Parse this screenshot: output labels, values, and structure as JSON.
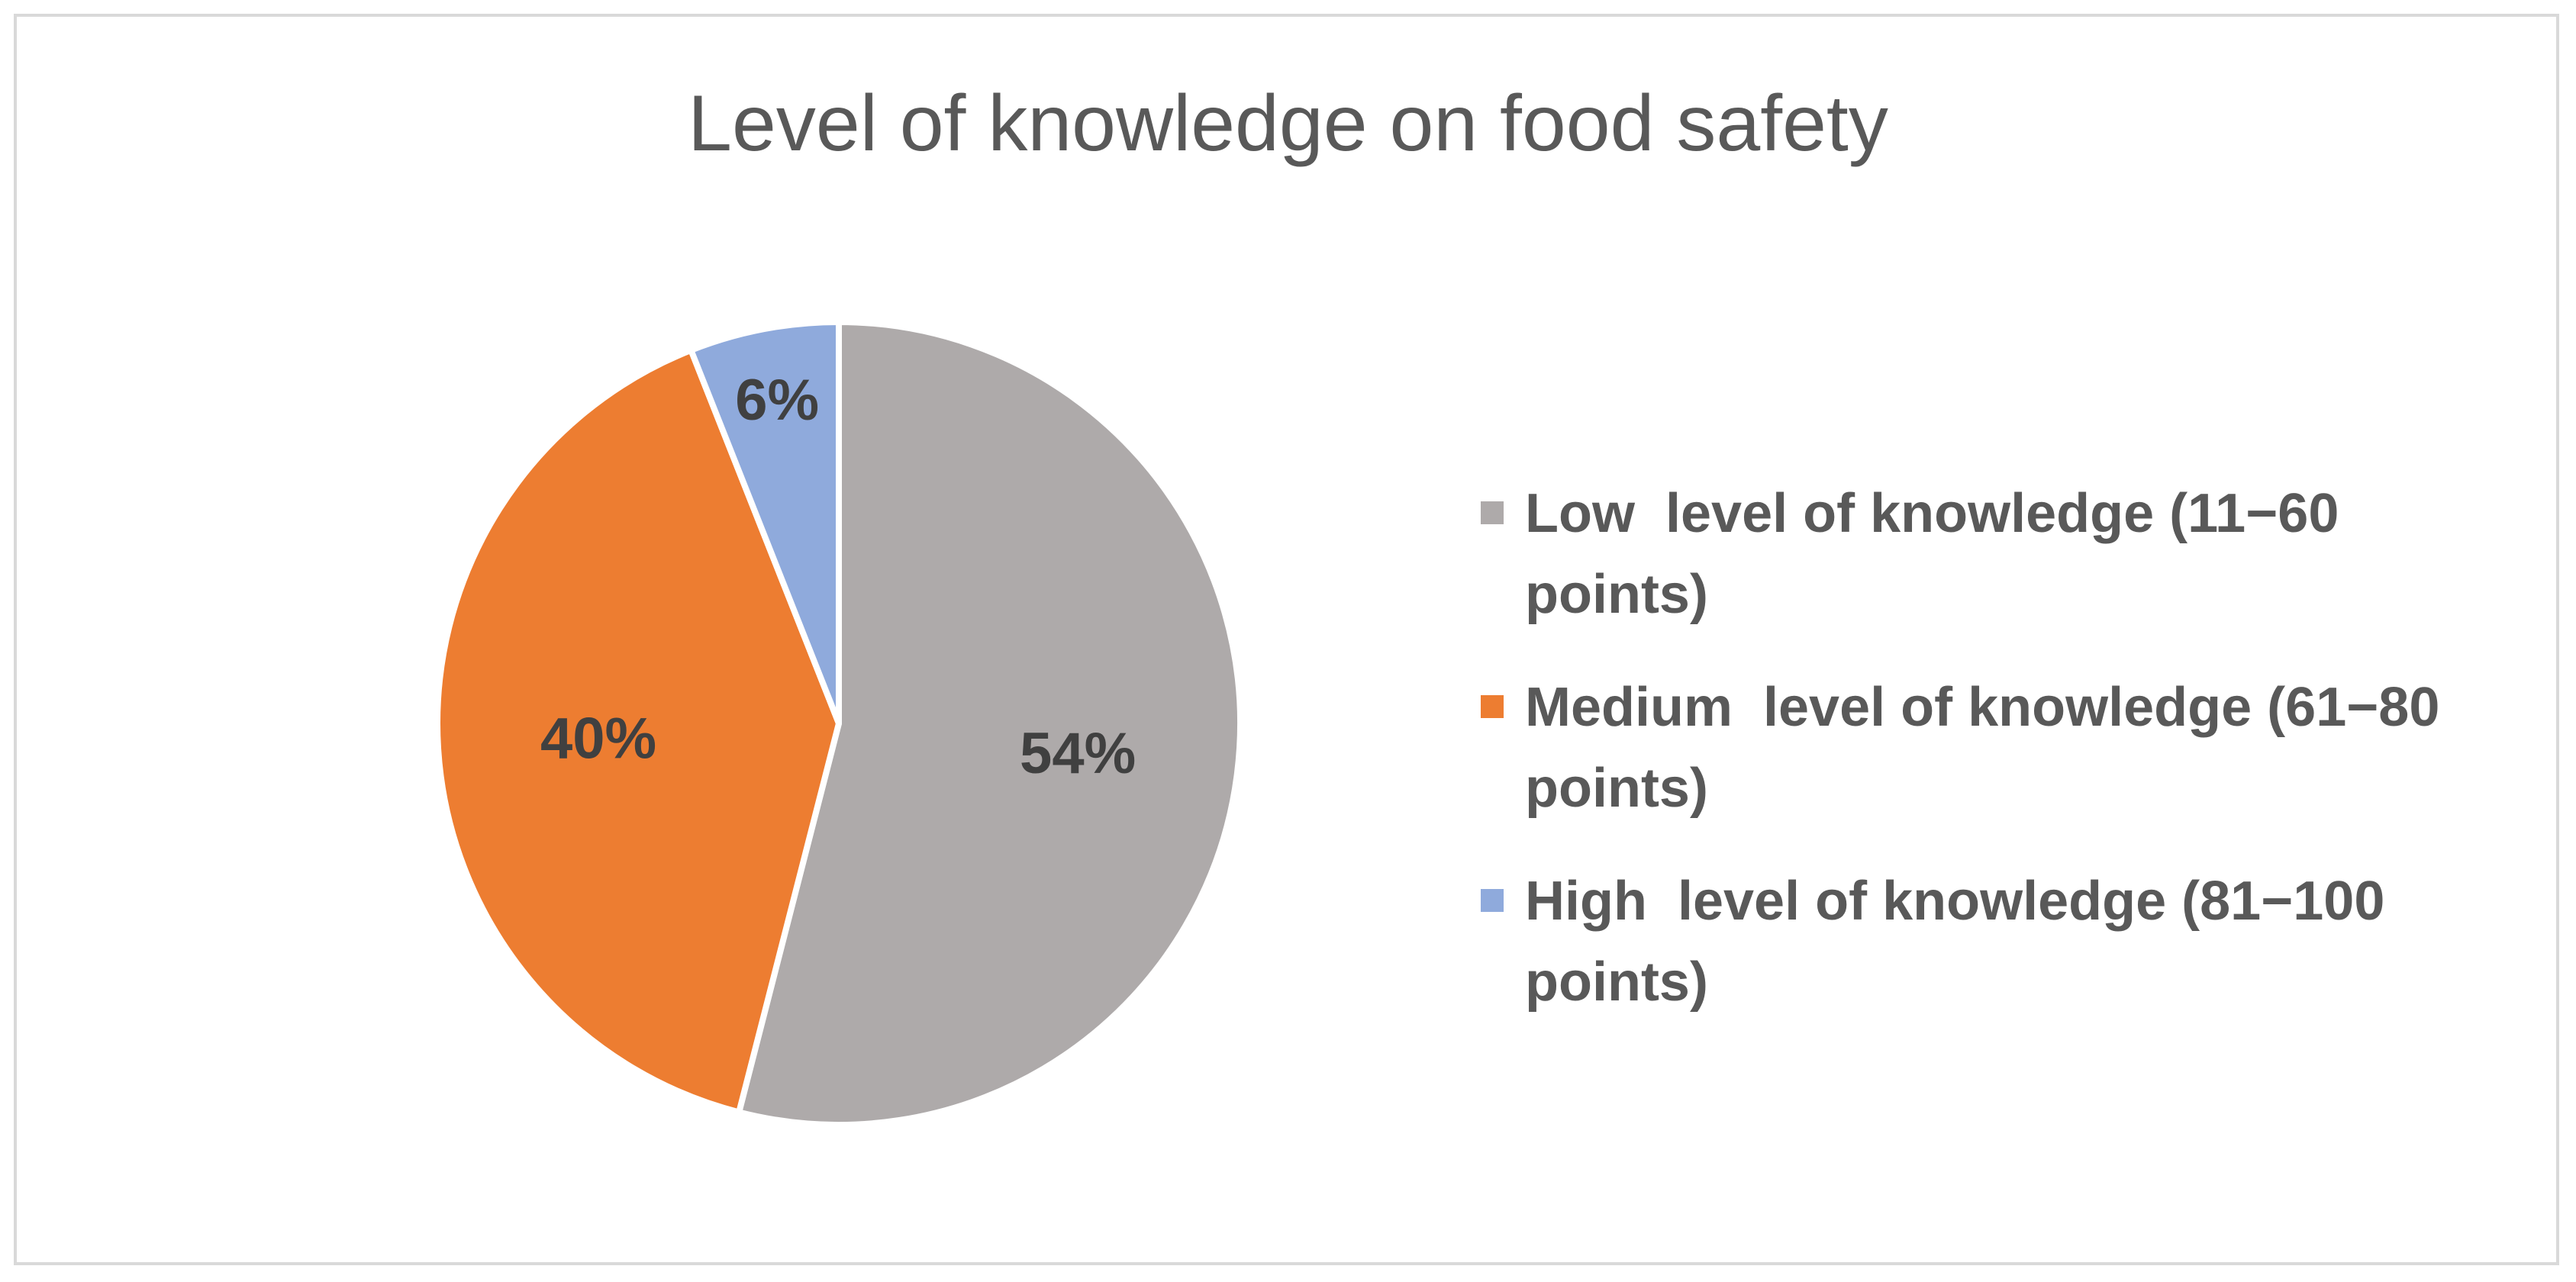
{
  "chart_data": {
    "type": "pie",
    "title": "Level of knowledge on food safety",
    "slices": [
      {
        "label": "Low  level of knowledge (11−60 points)",
        "value": 54,
        "display": "54%",
        "color": "#aeaaaa"
      },
      {
        "label": "Medium  level of knowledge (61−80 points)",
        "value": 40,
        "display": "40%",
        "color": "#ed7d31"
      },
      {
        "label": "High  level of knowledge (81−100 points)",
        "value": 6,
        "display": "6%",
        "color": "#8faadc"
      }
    ],
    "legend_position": "right",
    "data_labels": "percent inside slices",
    "start_angle": "12 o'clock, clockwise"
  },
  "legend": {
    "items": [
      {
        "label": "Low  level of knowledge (11−60 points)",
        "color": "#aeaaaa"
      },
      {
        "label": "Medium  level of knowledge (61−80 points)",
        "color": "#ed7d31"
      },
      {
        "label": "High  level of knowledge (81−100 points)",
        "color": "#8faadc"
      }
    ]
  },
  "colors": {
    "text": "#595959",
    "label_text": "#404040",
    "border": "#d9d9d9",
    "background": "#ffffff"
  }
}
